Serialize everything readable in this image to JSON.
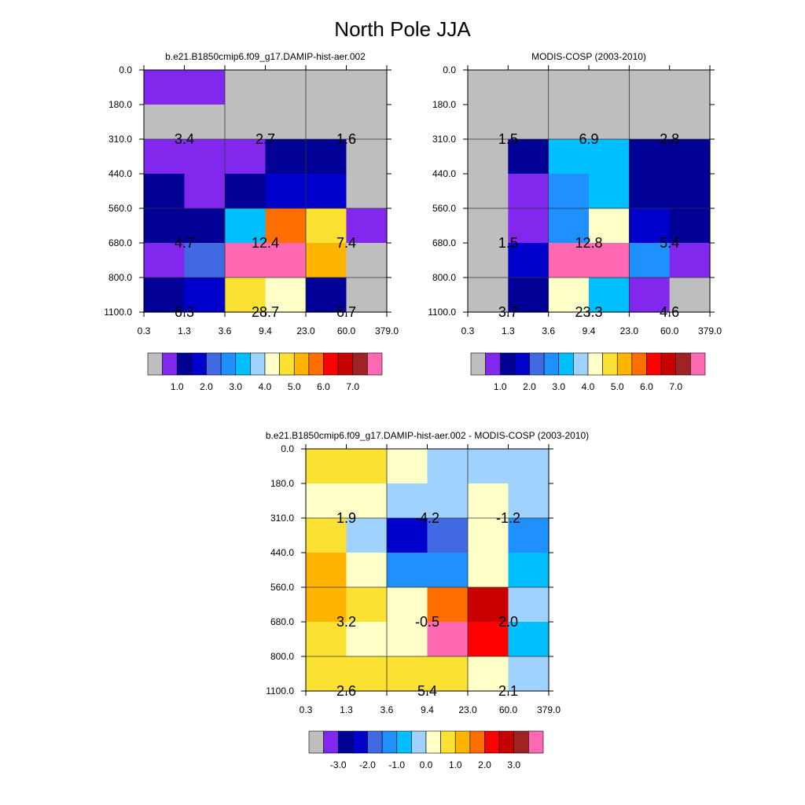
{
  "figure": {
    "title": "North Pole JJA"
  },
  "palette": {
    "abs": [
      "#bebebe",
      "#8228ee",
      "#000096",
      "#0000cd",
      "#4169e1",
      "#1e90ff",
      "#00bfff",
      "#a0d2ff",
      "#ffffc8",
      "#fae132",
      "#ffb400",
      "#ff6e00",
      "#ff0000",
      "#c80000",
      "#a02323",
      "#ff69b4"
    ],
    "diff": [
      "#bebebe",
      "#8228ee",
      "#000096",
      "#0000cd",
      "#4169e1",
      "#1e90ff",
      "#00bfff",
      "#a0d2ff",
      "#ffffc8",
      "#fae132",
      "#ffb400",
      "#ff6e00",
      "#ff0000",
      "#c80000",
      "#a02323",
      "#ff69b4"
    ]
  },
  "chart_data": [
    {
      "type": "heatmap",
      "title": "b.e21.B1850cmip6.f09_g17.DAMIP-hist-aer.002",
      "xlabel": "",
      "ylabel": "",
      "x_ticks": [
        "0.3",
        "1.3",
        "3.6",
        "9.4",
        "23.0",
        "60.0",
        "379.0"
      ],
      "y_ticks": [
        "0.0",
        "180.0",
        "310.0",
        "440.0",
        "560.0",
        "680.0",
        "800.0",
        "1100.0"
      ],
      "cells": [
        [
          1,
          1,
          0,
          0,
          0,
          0
        ],
        [
          0,
          0,
          0,
          0,
          0,
          0
        ],
        [
          1,
          1,
          1,
          2,
          2,
          0
        ],
        [
          2,
          1,
          2,
          3,
          3,
          0
        ],
        [
          2,
          2,
          6,
          11,
          9,
          1
        ],
        [
          1,
          4,
          15,
          15,
          10,
          0
        ],
        [
          2,
          3,
          9,
          8,
          2,
          0
        ]
      ],
      "labels": [
        {
          "row": 1,
          "col": 0,
          "text": "3.4"
        },
        {
          "row": 1,
          "col": 1,
          "text": "2.7"
        },
        {
          "row": 1,
          "col": 2,
          "text": "1.6"
        },
        {
          "row": 4,
          "col": 0,
          "text": "4.7"
        },
        {
          "row": 4,
          "col": 1,
          "text": "12.4"
        },
        {
          "row": 4,
          "col": 2,
          "text": "7.4"
        },
        {
          "row": 6,
          "col": 0,
          "text": "6.3"
        },
        {
          "row": 6,
          "col": 1,
          "text": "28.7"
        },
        {
          "row": 6,
          "col": 2,
          "text": "6.7"
        }
      ],
      "colorbar": {
        "palette": "abs",
        "labels": [
          "1.0",
          "2.0",
          "3.0",
          "4.0",
          "5.0",
          "6.0",
          "7.0"
        ]
      }
    },
    {
      "type": "heatmap",
      "title": "MODIS-COSP (2003-2010)",
      "xlabel": "",
      "ylabel": "",
      "x_ticks": [
        "0.3",
        "1.3",
        "3.6",
        "9.4",
        "23.0",
        "60.0",
        "379.0"
      ],
      "y_ticks": [
        "0.0",
        "180.0",
        "310.0",
        "440.0",
        "560.0",
        "680.0",
        "800.0",
        "1100.0"
      ],
      "cells": [
        [
          0,
          0,
          0,
          0,
          0,
          0
        ],
        [
          0,
          0,
          0,
          0,
          0,
          0
        ],
        [
          0,
          2,
          6,
          6,
          2,
          2
        ],
        [
          0,
          1,
          5,
          6,
          2,
          2
        ],
        [
          0,
          1,
          5,
          8,
          3,
          2
        ],
        [
          0,
          3,
          15,
          15,
          5,
          1
        ],
        [
          0,
          2,
          8,
          6,
          1,
          0
        ]
      ],
      "labels": [
        {
          "row": 1,
          "col": 0,
          "text": "1.5"
        },
        {
          "row": 1,
          "col": 1,
          "text": "6.9"
        },
        {
          "row": 1,
          "col": 2,
          "text": "2.8"
        },
        {
          "row": 4,
          "col": 0,
          "text": "1.5"
        },
        {
          "row": 4,
          "col": 1,
          "text": "12.8"
        },
        {
          "row": 4,
          "col": 2,
          "text": "5.4"
        },
        {
          "row": 6,
          "col": 0,
          "text": "3.7"
        },
        {
          "row": 6,
          "col": 1,
          "text": "23.3"
        },
        {
          "row": 6,
          "col": 2,
          "text": "4.6"
        }
      ],
      "colorbar": {
        "palette": "abs",
        "labels": [
          "1.0",
          "2.0",
          "3.0",
          "4.0",
          "5.0",
          "6.0",
          "7.0"
        ]
      }
    },
    {
      "type": "heatmap",
      "title": "b.e21.B1850cmip6.f09_g17.DAMIP-hist-aer.002 - MODIS-COSP (2003-2010)",
      "xlabel": "",
      "ylabel": "",
      "x_ticks": [
        "0.3",
        "1.3",
        "3.6",
        "9.4",
        "23.0",
        "60.0",
        "379.0"
      ],
      "y_ticks": [
        "0.0",
        "180.0",
        "310.0",
        "440.0",
        "560.0",
        "680.0",
        "800.0",
        "1100.0"
      ],
      "cells": [
        [
          9,
          9,
          8,
          7,
          7,
          7
        ],
        [
          8,
          8,
          7,
          7,
          8,
          7
        ],
        [
          9,
          7,
          3,
          4,
          8,
          5
        ],
        [
          10,
          8,
          5,
          5,
          8,
          6
        ],
        [
          10,
          9,
          8,
          11,
          13,
          7
        ],
        [
          9,
          8,
          8,
          15,
          12,
          6
        ],
        [
          9,
          9,
          9,
          9,
          8,
          7
        ]
      ],
      "labels": [
        {
          "row": 1,
          "col": 0,
          "text": "1.9"
        },
        {
          "row": 1,
          "col": 1,
          "text": "-4.2"
        },
        {
          "row": 1,
          "col": 2,
          "text": "-1.2"
        },
        {
          "row": 4,
          "col": 0,
          "text": "3.2"
        },
        {
          "row": 4,
          "col": 1,
          "text": "-0.5"
        },
        {
          "row": 4,
          "col": 2,
          "text": "2.0"
        },
        {
          "row": 6,
          "col": 0,
          "text": "2.6"
        },
        {
          "row": 6,
          "col": 1,
          "text": "5.4"
        },
        {
          "row": 6,
          "col": 2,
          "text": "2.1"
        }
      ],
      "colorbar": {
        "palette": "diff",
        "labels": [
          "-3.0",
          "-2.0",
          "-1.0",
          "0.0",
          "1.0",
          "2.0",
          "3.0"
        ]
      }
    }
  ]
}
